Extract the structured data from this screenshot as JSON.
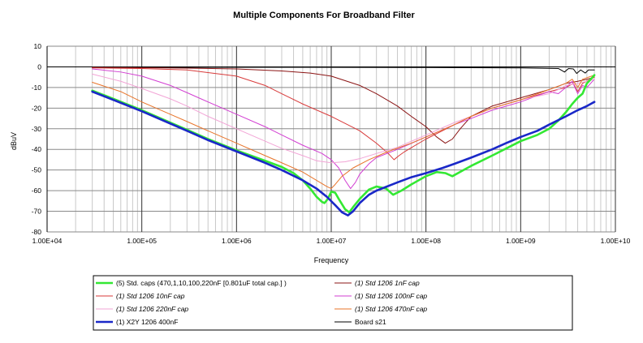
{
  "chart_data": {
    "type": "line",
    "title": "Multiple Components For Broadband Filter",
    "xlabel": "Frequency",
    "ylabel": "dBuV",
    "xscale": "log",
    "xlim": [
      10000,
      10000000000
    ],
    "ylim": [
      -80,
      10
    ],
    "x_ticks": [
      10000,
      100000,
      1000000,
      10000000,
      100000000,
      1000000000,
      10000000000
    ],
    "x_tick_labels": [
      "1.00E+04",
      "1.00E+05",
      "1.00E+06",
      "1.00E+07",
      "1.00E+08",
      "1.00E+09",
      "1.00E+10"
    ],
    "y_ticks": [
      10,
      0,
      -10,
      -20,
      -30,
      -40,
      -50,
      -60,
      -70,
      -80
    ],
    "y_tick_labels": [
      "10",
      "0",
      "-10",
      "-20",
      "-30",
      "-40",
      "-50",
      "-60",
      "-70",
      "-80"
    ],
    "grid": true,
    "legend_position": "bottom",
    "series": [
      {
        "name": "(5) Std. caps (470,1,10,100,220nF [0.801uF total cap.] )",
        "color": "#33e833",
        "points": [
          [
            30000.0,
            -11.5
          ],
          [
            50000.0,
            -15.5
          ],
          [
            100000.0,
            -21
          ],
          [
            200000.0,
            -27
          ],
          [
            300000.0,
            -30.5
          ],
          [
            500000.0,
            -35
          ],
          [
            1000000.0,
            -40.5
          ],
          [
            2000000.0,
            -45.5
          ],
          [
            3000000.0,
            -48.5
          ],
          [
            4000000.0,
            -51.5
          ],
          [
            5000000.0,
            -55
          ],
          [
            6000000.0,
            -59
          ],
          [
            7000000.0,
            -63
          ],
          [
            8000000.0,
            -65.5
          ],
          [
            8500000.0,
            -66
          ],
          [
            9200000.0,
            -64
          ],
          [
            10000000.0,
            -60.5
          ],
          [
            11000000.0,
            -61
          ],
          [
            12000000.0,
            -64
          ],
          [
            14000000.0,
            -69
          ],
          [
            15500000.0,
            -70.5
          ],
          [
            17000000.0,
            -68
          ],
          [
            20000000.0,
            -64
          ],
          [
            25000000.0,
            -59.5
          ],
          [
            30000000.0,
            -58
          ],
          [
            38000000.0,
            -59
          ],
          [
            45000000.0,
            -62
          ],
          [
            55000000.0,
            -60
          ],
          [
            70000000.0,
            -57
          ],
          [
            100000000.0,
            -53
          ],
          [
            130000000.0,
            -51
          ],
          [
            160000000.0,
            -51.5
          ],
          [
            190000000.0,
            -53
          ],
          [
            250000000.0,
            -50
          ],
          [
            300000000.0,
            -48
          ],
          [
            500000000.0,
            -43
          ],
          [
            1000000000.0,
            -36
          ],
          [
            1500000000.0,
            -33
          ],
          [
            2000000000.0,
            -30
          ],
          [
            2500000000.0,
            -26
          ],
          [
            3000000000.0,
            -22
          ],
          [
            3500000000.0,
            -18
          ],
          [
            4000000000.0,
            -15
          ],
          [
            4500000000.0,
            -13
          ],
          [
            5000000000.0,
            -8
          ],
          [
            5500000000.0,
            -6
          ],
          [
            6000000000.0,
            -4
          ]
        ]
      },
      {
        "name": "(1) Std 1206 1nF cap",
        "color": "#8b1414",
        "points": [
          [
            30000.0,
            -0.3
          ],
          [
            100000.0,
            -0.4
          ],
          [
            300000.0,
            -0.6
          ],
          [
            1000000.0,
            -1
          ],
          [
            3000000.0,
            -2
          ],
          [
            6000000.0,
            -3
          ],
          [
            10000000.0,
            -4.5
          ],
          [
            20000000.0,
            -9
          ],
          [
            30000000.0,
            -13
          ],
          [
            50000000.0,
            -19
          ],
          [
            70000000.0,
            -24
          ],
          [
            100000000.0,
            -29
          ],
          [
            130000000.0,
            -34
          ],
          [
            160000000.0,
            -37
          ],
          [
            190000000.0,
            -35
          ],
          [
            230000000.0,
            -30
          ],
          [
            300000000.0,
            -24
          ],
          [
            500000000.0,
            -19
          ],
          [
            1000000000.0,
            -15
          ],
          [
            2000000000.0,
            -11
          ],
          [
            3000000000.0,
            -8
          ],
          [
            4000000000.0,
            -7
          ],
          [
            5000000000.0,
            -6
          ],
          [
            6000000000.0,
            -5
          ]
        ]
      },
      {
        "name": "(1) Std 1206 10nF cap",
        "color": "#d83a3a",
        "points": [
          [
            30000.0,
            -0.5
          ],
          [
            100000.0,
            -0.8
          ],
          [
            300000.0,
            -1.5
          ],
          [
            1000000.0,
            -4.5
          ],
          [
            2000000.0,
            -9
          ],
          [
            3000000.0,
            -13
          ],
          [
            5000000.0,
            -18
          ],
          [
            10000000.0,
            -24
          ],
          [
            20000000.0,
            -31
          ],
          [
            30000000.0,
            -37
          ],
          [
            40000000.0,
            -42
          ],
          [
            46000000.0,
            -45
          ],
          [
            52000000.0,
            -43
          ],
          [
            60000000.0,
            -41
          ],
          [
            100000000.0,
            -35
          ],
          [
            200000000.0,
            -28
          ],
          [
            300000000.0,
            -24
          ],
          [
            500000000.0,
            -20
          ],
          [
            1000000000.0,
            -16
          ],
          [
            2000000000.0,
            -12
          ],
          [
            3000000000.0,
            -10
          ],
          [
            3600000000.0,
            -8
          ],
          [
            4000000000.0,
            -12
          ],
          [
            4500000000.0,
            -8
          ],
          [
            6000000000.0,
            -5
          ]
        ]
      },
      {
        "name": "(1) Std 1206 100nF cap",
        "color": "#d23ed2",
        "points": [
          [
            30000.0,
            -1
          ],
          [
            60000.0,
            -2.5
          ],
          [
            100000.0,
            -4.5
          ],
          [
            200000.0,
            -9
          ],
          [
            300000.0,
            -12.5
          ],
          [
            500000.0,
            -17
          ],
          [
            1000000.0,
            -23
          ],
          [
            2000000.0,
            -29
          ],
          [
            3000000.0,
            -33
          ],
          [
            5000000.0,
            -38
          ],
          [
            8000000.0,
            -42
          ],
          [
            10000000.0,
            -45
          ],
          [
            12000000.0,
            -49
          ],
          [
            14000000.0,
            -55
          ],
          [
            16000000.0,
            -59
          ],
          [
            18000000.0,
            -56
          ],
          [
            20000000.0,
            -52
          ],
          [
            25000000.0,
            -47
          ],
          [
            30000000.0,
            -44
          ],
          [
            50000000.0,
            -40
          ],
          [
            100000000.0,
            -34
          ],
          [
            200000000.0,
            -28
          ],
          [
            300000000.0,
            -25
          ],
          [
            500000000.0,
            -21
          ],
          [
            1000000000.0,
            -17
          ],
          [
            1500000000.0,
            -14
          ],
          [
            2000000000.0,
            -12
          ],
          [
            2500000000.0,
            -13
          ],
          [
            3000000000.0,
            -10
          ],
          [
            3500000000.0,
            -7
          ],
          [
            4000000000.0,
            -13
          ],
          [
            4500000000.0,
            -9
          ],
          [
            5000000000.0,
            -10
          ],
          [
            6000000000.0,
            -6
          ]
        ]
      },
      {
        "name": "(1) Std 1206 220nF cap",
        "color": "#f2a4d6",
        "points": [
          [
            30000.0,
            -3.5
          ],
          [
            60000.0,
            -7
          ],
          [
            100000.0,
            -10.5
          ],
          [
            200000.0,
            -15.5
          ],
          [
            300000.0,
            -19
          ],
          [
            500000.0,
            -24
          ],
          [
            1000000.0,
            -30
          ],
          [
            2000000.0,
            -36
          ],
          [
            3000000.0,
            -39.5
          ],
          [
            5000000.0,
            -43
          ],
          [
            7000000.0,
            -45.5
          ],
          [
            10000000.0,
            -46.5
          ],
          [
            14000000.0,
            -46
          ],
          [
            20000000.0,
            -44.5
          ],
          [
            30000000.0,
            -42
          ],
          [
            50000000.0,
            -39
          ],
          [
            100000000.0,
            -33
          ],
          [
            200000000.0,
            -27
          ],
          [
            300000000.0,
            -24
          ],
          [
            500000000.0,
            -20
          ],
          [
            1000000000.0,
            -16
          ],
          [
            2000000000.0,
            -13
          ],
          [
            2500000000.0,
            -11
          ],
          [
            3000000000.0,
            -9
          ],
          [
            4000000000.0,
            -8
          ],
          [
            5000000000.0,
            -7
          ],
          [
            6000000000.0,
            -6
          ]
        ]
      },
      {
        "name": "(1) Std 1206 470nF cap",
        "color": "#e8742a",
        "points": [
          [
            30000.0,
            -7.5
          ],
          [
            60000.0,
            -12
          ],
          [
            100000.0,
            -17
          ],
          [
            200000.0,
            -23
          ],
          [
            300000.0,
            -26.5
          ],
          [
            500000.0,
            -31
          ],
          [
            1000000.0,
            -37
          ],
          [
            2000000.0,
            -43
          ],
          [
            3000000.0,
            -46.5
          ],
          [
            5000000.0,
            -51
          ],
          [
            7000000.0,
            -55
          ],
          [
            9000000.0,
            -58
          ],
          [
            10000000.0,
            -59
          ],
          [
            11000000.0,
            -57
          ],
          [
            13000000.0,
            -53
          ],
          [
            17000000.0,
            -49
          ],
          [
            25000000.0,
            -45
          ],
          [
            40000000.0,
            -41
          ],
          [
            70000000.0,
            -37
          ],
          [
            100000000.0,
            -34
          ],
          [
            200000000.0,
            -28
          ],
          [
            300000000.0,
            -24
          ],
          [
            500000000.0,
            -20
          ],
          [
            1000000000.0,
            -16
          ],
          [
            2000000000.0,
            -11
          ],
          [
            3000000000.0,
            -8
          ],
          [
            3500000000.0,
            -6
          ],
          [
            4000000000.0,
            -10
          ],
          [
            4500000000.0,
            -6
          ],
          [
            6000000000.0,
            -4
          ]
        ]
      },
      {
        "name": "(1) X2Y 1206 400nF",
        "color": "#1a28c8",
        "points": [
          [
            30000.0,
            -12
          ],
          [
            50000.0,
            -16
          ],
          [
            100000.0,
            -21.5
          ],
          [
            200000.0,
            -27.5
          ],
          [
            300000.0,
            -31
          ],
          [
            500000.0,
            -35.5
          ],
          [
            1000000.0,
            -41
          ],
          [
            2000000.0,
            -46.5
          ],
          [
            3000000.0,
            -50
          ],
          [
            5000000.0,
            -55
          ],
          [
            7000000.0,
            -59
          ],
          [
            9000000.0,
            -63
          ],
          [
            11000000.0,
            -67
          ],
          [
            13000000.0,
            -70.5
          ],
          [
            15000000.0,
            -72
          ],
          [
            17000000.0,
            -70
          ],
          [
            20000000.0,
            -66
          ],
          [
            25000000.0,
            -62
          ],
          [
            30000000.0,
            -60
          ],
          [
            50000000.0,
            -56
          ],
          [
            70000000.0,
            -53.5
          ],
          [
            100000000.0,
            -51.5
          ],
          [
            150000000.0,
            -49
          ],
          [
            200000000.0,
            -47
          ],
          [
            300000000.0,
            -44
          ],
          [
            500000000.0,
            -40
          ],
          [
            700000000.0,
            -37
          ],
          [
            1000000000.0,
            -34
          ],
          [
            1500000000.0,
            -31
          ],
          [
            2000000000.0,
            -28
          ],
          [
            3000000000.0,
            -24
          ],
          [
            4000000000.0,
            -21
          ],
          [
            5000000000.0,
            -19
          ],
          [
            6000000000.0,
            -17
          ]
        ]
      },
      {
        "name": "Board s21",
        "color": "#000000",
        "points": [
          [
            30000.0,
            -0.2
          ],
          [
            1000000.0,
            -0.2
          ],
          [
            100000000.0,
            -0.3
          ],
          [
            1000000000.0,
            -0.5
          ],
          [
            2500000000.0,
            -0.8
          ],
          [
            2900000000.0,
            -2.5
          ],
          [
            3200000000.0,
            -0.8
          ],
          [
            3600000000.0,
            -1
          ],
          [
            3900000000.0,
            -3.2
          ],
          [
            4300000000.0,
            -1.5
          ],
          [
            4800000000.0,
            -3
          ],
          [
            5200000000.0,
            -1.5
          ],
          [
            6000000000.0,
            -1.5
          ]
        ]
      }
    ]
  }
}
